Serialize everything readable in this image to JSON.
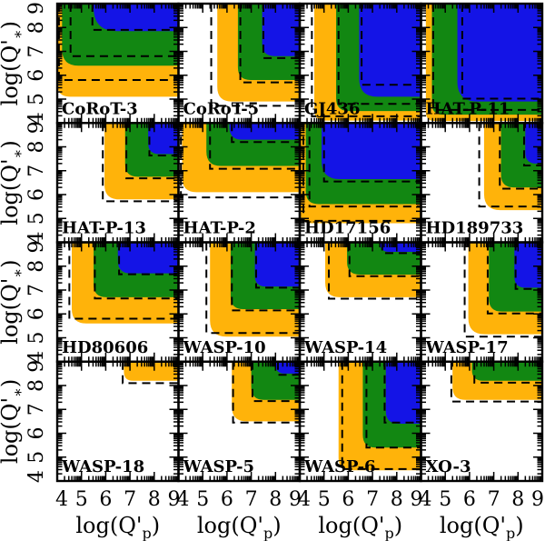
{
  "chart_data": {
    "type": "area",
    "description": "4x4 grid of tidal quality factor constraint maps for transiting exoplanet systems; shaded nested regions (orange, green, blue) with dashed confidence contours in the log(Q'p)-log(Q'*) plane",
    "xlabel_main": "log(Q'",
    "xlabel_sub": "p",
    "xlabel_close": ")",
    "ylabel_main": "log(Q'",
    "ylabel_sub": "∗",
    "ylabel_close": ")",
    "x_range": [
      4,
      9
    ],
    "y_range": [
      4,
      9
    ],
    "tick_values": [
      4,
      5,
      6,
      7,
      8,
      9
    ],
    "tick_labels": [
      "4",
      "5",
      "6",
      "7",
      "8",
      "9"
    ],
    "minor_tick_offsets": [
      0.301,
      0.477,
      0.602,
      0.699,
      0.778,
      0.845,
      0.903,
      0.954
    ],
    "colors": {
      "orange": "#FFB30A",
      "green": "#128712",
      "blue": "#1414E6",
      "frame": "#000000",
      "dashed": "#000000",
      "background": "#ffffff"
    },
    "panels": [
      {
        "name": "CoRoT-3",
        "row": 0,
        "col": 0,
        "regions": {
          "orange": [
            4.0,
            5.1,
            14
          ],
          "green": [
            4.2,
            6.4,
            18
          ],
          "blue": [
            5.5,
            7.85,
            26
          ]
        },
        "dashed": [
          [
            4.07,
            5.8
          ],
          [
            4.55,
            6.8
          ],
          [
            5.45,
            7.9
          ]
        ]
      },
      {
        "name": "CoRoT-5",
        "row": 0,
        "col": 1,
        "regions": {
          "orange": [
            5.6,
            4.9,
            16
          ],
          "green": [
            6.45,
            5.8,
            14
          ],
          "blue": [
            7.45,
            6.8,
            14
          ]
        },
        "dashed": [
          [
            5.35,
            4.72
          ],
          [
            6.55,
            5.7
          ],
          [
            7.5,
            6.72
          ]
        ]
      },
      {
        "name": "GJ436",
        "row": 0,
        "col": 2,
        "regions": {
          "orange": [
            4.6,
            4.1,
            12
          ],
          "green": [
            5.5,
            4.5,
            14
          ],
          "blue": [
            6.45,
            5.1,
            20
          ]
        },
        "dashed": [
          [
            4.5,
            4.28
          ],
          [
            5.6,
            4.8
          ],
          [
            6.55,
            5.6
          ]
        ]
      },
      {
        "name": "HAT-P-11",
        "row": 0,
        "col": 3,
        "regions": {
          "orange": [
            4.2,
            4.08,
            10
          ],
          "green": [
            4.45,
            4.35,
            12
          ],
          "blue": [
            5.5,
            4.9,
            22
          ]
        },
        "dashed": [
          [
            4.5,
            4.55
          ],
          [
            5.7,
            5.02
          ]
        ]
      },
      {
        "name": "HAT-P-13",
        "row": 1,
        "col": 0,
        "regions": {
          "orange": [
            5.95,
            5.8,
            16
          ],
          "green": [
            6.8,
            6.75,
            14
          ],
          "blue": [
            7.75,
            7.7,
            12
          ]
        },
        "dashed": [
          [
            5.88,
            5.72
          ],
          [
            6.85,
            6.68
          ],
          [
            7.8,
            7.64
          ]
        ]
      },
      {
        "name": "HAT-P-2",
        "row": 1,
        "col": 1,
        "regions": {
          "orange": [
            4.15,
            6.1,
            16
          ],
          "green": [
            5.15,
            7.2,
            16
          ],
          "blue": [
            6.1,
            8.3,
            14
          ]
        },
        "dashed": [
          [
            4.1,
            5.88
          ],
          [
            5.3,
            7.08
          ],
          [
            6.2,
            8.2
          ]
        ]
      },
      {
        "name": "HD17156",
        "row": 1,
        "col": 2,
        "regions": {
          "orange": [
            4.02,
            4.8,
            12
          ],
          "green": [
            4.25,
            5.6,
            14
          ],
          "blue": [
            4.9,
            6.65,
            20
          ]
        },
        "dashed": [
          [
            4.15,
            4.9
          ],
          [
            4.4,
            5.5
          ],
          [
            5.0,
            6.55
          ]
        ]
      },
      {
        "name": "HD189733",
        "row": 1,
        "col": 3,
        "regions": {
          "orange": [
            6.6,
            5.35,
            18
          ],
          "green": [
            7.3,
            6.3,
            14
          ],
          "blue": [
            8.3,
            7.3,
            12
          ]
        },
        "dashed": [
          [
            6.4,
            5.5
          ],
          [
            7.25,
            6.25
          ],
          [
            8.25,
            7.22
          ]
        ]
      },
      {
        "name": "HD80606",
        "row": 2,
        "col": 0,
        "regions": {
          "orange": [
            4.6,
            5.6,
            16
          ],
          "green": [
            5.5,
            6.7,
            14
          ],
          "blue": [
            6.5,
            7.7,
            14
          ]
        },
        "dashed": [
          [
            4.5,
            5.8
          ],
          [
            5.55,
            6.65
          ],
          [
            6.55,
            7.66
          ]
        ]
      },
      {
        "name": "WASP-10",
        "row": 2,
        "col": 1,
        "regions": {
          "orange": [
            5.3,
            5.05,
            18
          ],
          "green": [
            6.15,
            6.2,
            14
          ],
          "blue": [
            7.15,
            7.15,
            12
          ]
        },
        "dashed": [
          [
            5.15,
            5.2
          ],
          [
            6.2,
            6.15
          ],
          [
            7.2,
            7.1
          ]
        ]
      },
      {
        "name": "WASP-14",
        "row": 2,
        "col": 2,
        "regions": {
          "orange": [
            5.05,
            6.7,
            16
          ],
          "green": [
            5.95,
            7.65,
            14
          ],
          "blue": [
            7.3,
            8.6,
            12
          ]
        },
        "dashed": [
          [
            5.2,
            6.64
          ],
          [
            6.05,
            7.58
          ],
          [
            7.4,
            8.55
          ]
        ]
      },
      {
        "name": "WASP-17",
        "row": 2,
        "col": 3,
        "regions": {
          "orange": [
            5.95,
            5.15,
            18
          ],
          "green": [
            6.8,
            6.1,
            14
          ],
          "blue": [
            7.85,
            7.1,
            12
          ]
        },
        "dashed": [
          [
            5.8,
            5.05
          ],
          [
            6.75,
            6.02
          ],
          [
            7.9,
            7.05
          ]
        ]
      },
      {
        "name": "WASP-18",
        "row": 3,
        "col": 0,
        "regions": {
          "orange": [
            6.75,
            8.2,
            10
          ],
          "green": null,
          "blue": null
        },
        "dashed": [
          [
            6.7,
            8.1
          ]
        ]
      },
      {
        "name": "WASP-5",
        "row": 3,
        "col": 1,
        "regions": {
          "orange": [
            6.2,
            6.5,
            16
          ],
          "green": [
            7.0,
            7.4,
            14
          ],
          "blue": [
            8.0,
            8.5,
            10
          ]
        },
        "dashed": [
          [
            6.25,
            6.45
          ],
          [
            7.05,
            7.35
          ],
          [
            8.1,
            8.45
          ]
        ]
      },
      {
        "name": "WASP-6",
        "row": 3,
        "col": 2,
        "regions": {
          "orange": [
            5.6,
            4.45,
            14
          ],
          "green": [
            6.6,
            5.4,
            14
          ],
          "blue": [
            7.55,
            6.4,
            14
          ]
        },
        "dashed": [
          [
            5.75,
            4.5
          ],
          [
            6.75,
            5.4
          ],
          [
            7.5,
            6.45
          ]
        ]
      },
      {
        "name": "XO-3",
        "row": 3,
        "col": 3,
        "regions": {
          "orange": [
            5.3,
            7.4,
            14
          ],
          "green": [
            6.1,
            8.2,
            12
          ],
          "blue": null
        },
        "dashed": [
          [
            5.25,
            7.33
          ],
          [
            6.2,
            8.12
          ]
        ]
      }
    ]
  }
}
